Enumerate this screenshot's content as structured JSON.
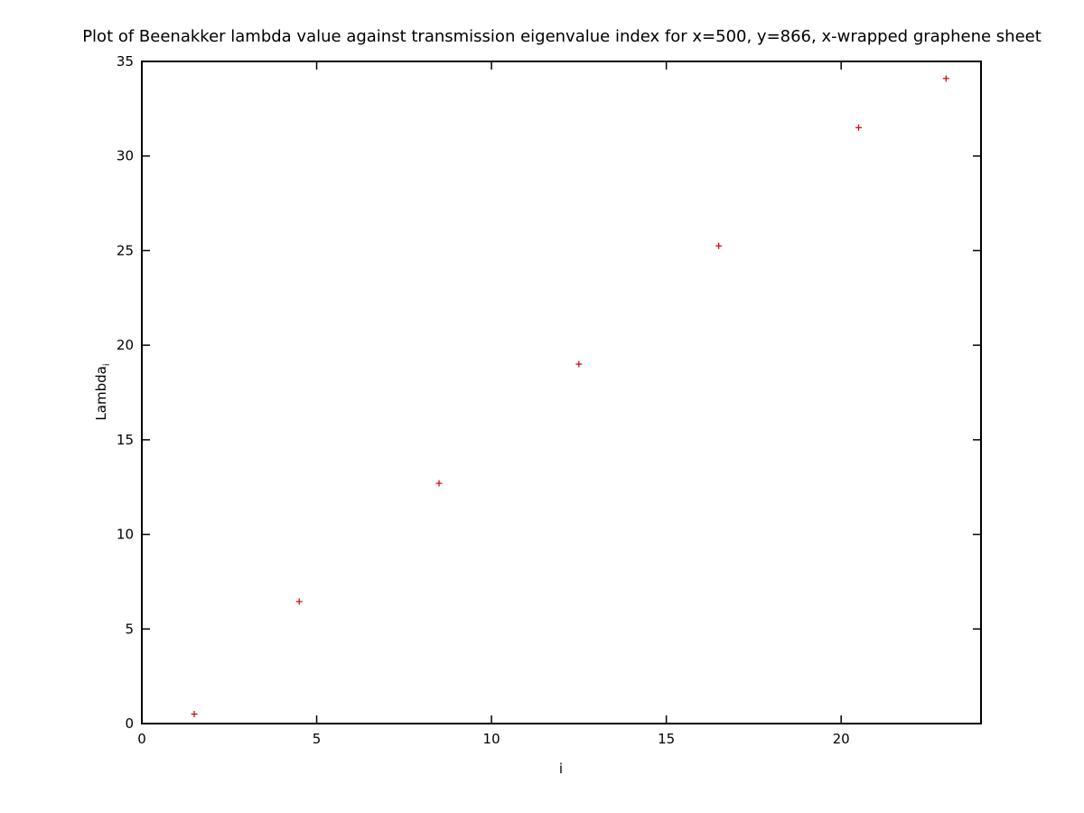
{
  "chart_data": {
    "type": "scatter",
    "title": "Plot of Beenakker lambda value against transmission eigenvalue index for x=500, y=866, x-wrapped graphene sheet",
    "xlabel": "i",
    "ylabel_main": "Lambda",
    "ylabel_sub": "i",
    "xlim": [
      0,
      24
    ],
    "ylim": [
      0,
      35
    ],
    "xticks": [
      0,
      5,
      10,
      15,
      20
    ],
    "yticks": [
      0,
      5,
      10,
      15,
      20,
      25,
      30,
      35
    ],
    "marker_color": "#cc0000",
    "marker": "plus",
    "grid": false,
    "legend": "none",
    "x": [
      1.5,
      4.5,
      8.5,
      12.5,
      16.5,
      20.5,
      23.0
    ],
    "y": [
      0.5,
      6.45,
      12.7,
      19.0,
      25.25,
      31.5,
      34.1
    ]
  }
}
